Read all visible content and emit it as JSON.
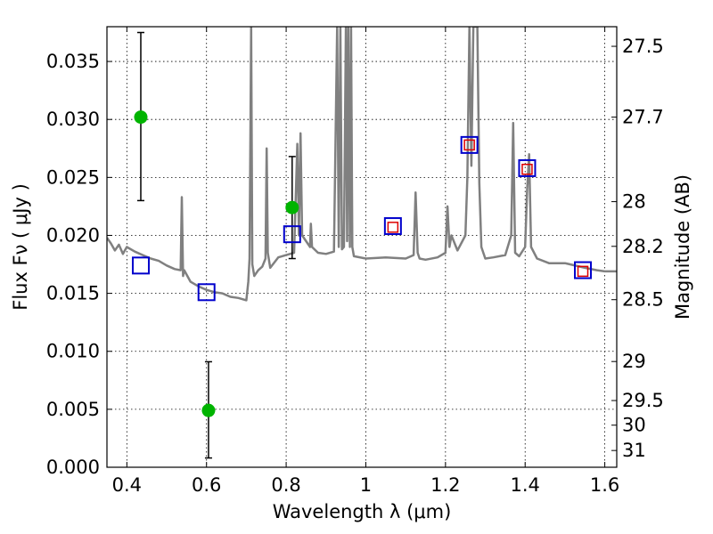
{
  "chart_data": {
    "type": "scatter",
    "title": "",
    "xlabel": "Wavelength  λ (μm)",
    "ylabel": "Flux  Fν  ( μJy )",
    "y2label": "Magnitude (AB)",
    "xlim": [
      0.35,
      1.63
    ],
    "ylim": [
      0.0,
      0.038
    ],
    "grid": true,
    "x_ticks": [
      0.4,
      0.6,
      0.8,
      1.0,
      1.2,
      1.4,
      1.6
    ],
    "x_tick_labels": [
      "0.4",
      "0.6",
      "0.8",
      "1",
      "1.2",
      "1.4",
      "1.6"
    ],
    "y_ticks": [
      0.0,
      0.005,
      0.01,
      0.015,
      0.02,
      0.025,
      0.03,
      0.035
    ],
    "y_tick_labels": [
      "0.000",
      "0.005",
      "0.010",
      "0.015",
      "0.020",
      "0.025",
      "0.030",
      "0.035"
    ],
    "y2_ticks": [
      27.5,
      27.7,
      28.0,
      28.2,
      28.5,
      29.0,
      29.5,
      30.0,
      31.0
    ],
    "y2_tick_labels": [
      "27.5",
      "27.7",
      "28",
      "28.2",
      "28.5",
      "29",
      "29.5",
      "30",
      "31"
    ],
    "colors": {
      "spectrum": "#808080",
      "observed": "#00b400",
      "model_bb": "#0000cc",
      "observed_sq": "#dd0000",
      "errorbar": "#000000"
    },
    "series": [
      {
        "kind": "spectrum",
        "x": [
          0.35,
          0.36,
          0.37,
          0.38,
          0.39,
          0.4,
          0.42,
          0.44,
          0.46,
          0.48,
          0.5,
          0.52,
          0.535,
          0.538,
          0.541,
          0.544,
          0.56,
          0.58,
          0.6,
          0.62,
          0.64,
          0.66,
          0.68,
          0.7,
          0.705,
          0.708,
          0.712,
          0.715,
          0.72,
          0.73,
          0.74,
          0.748,
          0.751,
          0.754,
          0.76,
          0.78,
          0.8,
          0.82,
          0.828,
          0.832,
          0.836,
          0.84,
          0.86,
          0.862,
          0.865,
          0.88,
          0.9,
          0.92,
          0.928,
          0.932,
          0.936,
          0.94,
          0.945,
          0.95,
          0.953,
          0.956,
          0.96,
          0.963,
          0.966,
          0.97,
          1.0,
          1.05,
          1.1,
          1.12,
          1.125,
          1.13,
          1.135,
          1.15,
          1.18,
          1.2,
          1.205,
          1.21,
          1.215,
          1.23,
          1.25,
          1.255,
          1.26,
          1.265,
          1.27,
          1.28,
          1.285,
          1.29,
          1.3,
          1.32,
          1.35,
          1.365,
          1.37,
          1.375,
          1.385,
          1.4,
          1.405,
          1.41,
          1.415,
          1.43,
          1.46,
          1.5,
          1.55,
          1.58,
          1.6,
          1.63
        ],
        "y": [
          0.0198,
          0.0193,
          0.0187,
          0.0192,
          0.0184,
          0.019,
          0.0186,
          0.0183,
          0.018,
          0.0178,
          0.0174,
          0.0171,
          0.017,
          0.0233,
          0.0165,
          0.017,
          0.016,
          0.0156,
          0.0153,
          0.0151,
          0.015,
          0.0147,
          0.0146,
          0.0144,
          0.016,
          0.018,
          0.038,
          0.0175,
          0.0165,
          0.017,
          0.0173,
          0.018,
          0.0275,
          0.0185,
          0.0172,
          0.0181,
          0.0183,
          0.0185,
          0.0279,
          0.02,
          0.0288,
          0.02,
          0.019,
          0.021,
          0.019,
          0.0185,
          0.0184,
          0.0186,
          0.038,
          0.019,
          0.038,
          0.0188,
          0.019,
          0.038,
          0.0195,
          0.038,
          0.019,
          0.038,
          0.019,
          0.0182,
          0.018,
          0.0181,
          0.018,
          0.0183,
          0.0237,
          0.0185,
          0.018,
          0.0179,
          0.0181,
          0.0185,
          0.0225,
          0.019,
          0.02,
          0.0187,
          0.02,
          0.025,
          0.038,
          0.026,
          0.038,
          0.038,
          0.0245,
          0.019,
          0.018,
          0.0181,
          0.0183,
          0.02,
          0.0297,
          0.0185,
          0.0182,
          0.019,
          0.024,
          0.027,
          0.019,
          0.018,
          0.0176,
          0.0176,
          0.0172,
          0.017,
          0.0169,
          0.0169
        ]
      },
      {
        "kind": "observed_points",
        "x": [
          0.435,
          0.605,
          0.815
        ],
        "y": [
          0.0302,
          0.0049,
          0.0224
        ],
        "yerr_low": [
          0.023,
          0.0008,
          0.018
        ],
        "yerr_high": [
          0.0375,
          0.0091,
          0.0268
        ]
      },
      {
        "kind": "model_squares",
        "x": [
          0.435,
          0.6,
          0.815,
          1.068,
          1.26,
          1.405,
          1.545
        ],
        "y": [
          0.0174,
          0.0151,
          0.0201,
          0.0208,
          0.0278,
          0.0258,
          0.017
        ]
      },
      {
        "kind": "observed_squares",
        "x": [
          1.068,
          1.26,
          1.405,
          1.545
        ],
        "y": [
          0.0207,
          0.0278,
          0.0257,
          0.0169
        ]
      }
    ]
  }
}
